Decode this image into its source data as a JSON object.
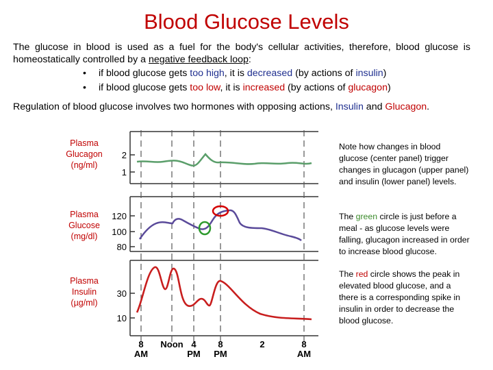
{
  "title": "Blood Glucose Levels",
  "intro": {
    "part1": "The glucose in blood is used as a fuel for the body's cellular activities, therefore, blood glucose is homeostatically controlled by a ",
    "link": "negative feedback loop",
    "part2": ":"
  },
  "bullets": [
    {
      "pre": "if blood glucose gets ",
      "hl1": "too high",
      "mid": ", it is ",
      "hl2": "decreased",
      "post1": " (by actions of ",
      "hl3": "insulin",
      "post2": ")"
    },
    {
      "pre": "if blood glucose gets ",
      "hl1": "too low",
      "mid": ", it is ",
      "hl2": "increased",
      "post1": " (by actions of ",
      "hl3": "glucagon",
      "post2": ")"
    }
  ],
  "regulation": {
    "pre": "Regulation of blood glucose involves two hormones with opposing actions, ",
    "insulin": "Insulin",
    "and": " and ",
    "glucagon": "Glucagon",
    "end": "."
  },
  "panels": [
    {
      "label_lines": [
        "Plasma",
        "Glucagon",
        "(ng/ml)"
      ],
      "ticks": [
        "2",
        "1"
      ]
    },
    {
      "label_lines": [
        "Plasma",
        "Glucose",
        "(mg/dl)"
      ],
      "ticks": [
        "120",
        "100",
        "80"
      ]
    },
    {
      "label_lines": [
        "Plasma",
        "Insulin",
        "(µg/ml)"
      ],
      "ticks": [
        "30",
        "10"
      ]
    }
  ],
  "x_axis": {
    "ticks": [
      {
        "top": "8",
        "bottom": "AM"
      },
      {
        "top": "Noon",
        "bottom": ""
      },
      {
        "top": "4",
        "bottom": "PM"
      },
      {
        "top": "8",
        "bottom": "PM"
      },
      {
        "top": "2",
        "bottom": ""
      },
      {
        "top": "8",
        "bottom": "AM"
      }
    ]
  },
  "notes": {
    "note1": "Note how changes in blood glucose (center panel) trigger changes in glucagon (upper panel) and insulin (lower panel) levels.",
    "note2_pre": "The ",
    "note2_color": "green",
    "note2_post": " circle is just before a meal - as glucose levels were falling, glucagon increased in order to increase blood glucose.",
    "note3_pre": "The ",
    "note3_color": "red",
    "note3_post": " circle shows the peak in elevated blood glucose, and a there is a corresponding spike in insulin in order to decrease the blood glucose."
  },
  "colors": {
    "title": "#c00000",
    "glucagon_line": "#5a9e6a",
    "glucose_line": "#5a4a9a",
    "insulin_line": "#c81e1e",
    "green_circle": "#2e9a2e",
    "red_circle": "#d40000"
  }
}
